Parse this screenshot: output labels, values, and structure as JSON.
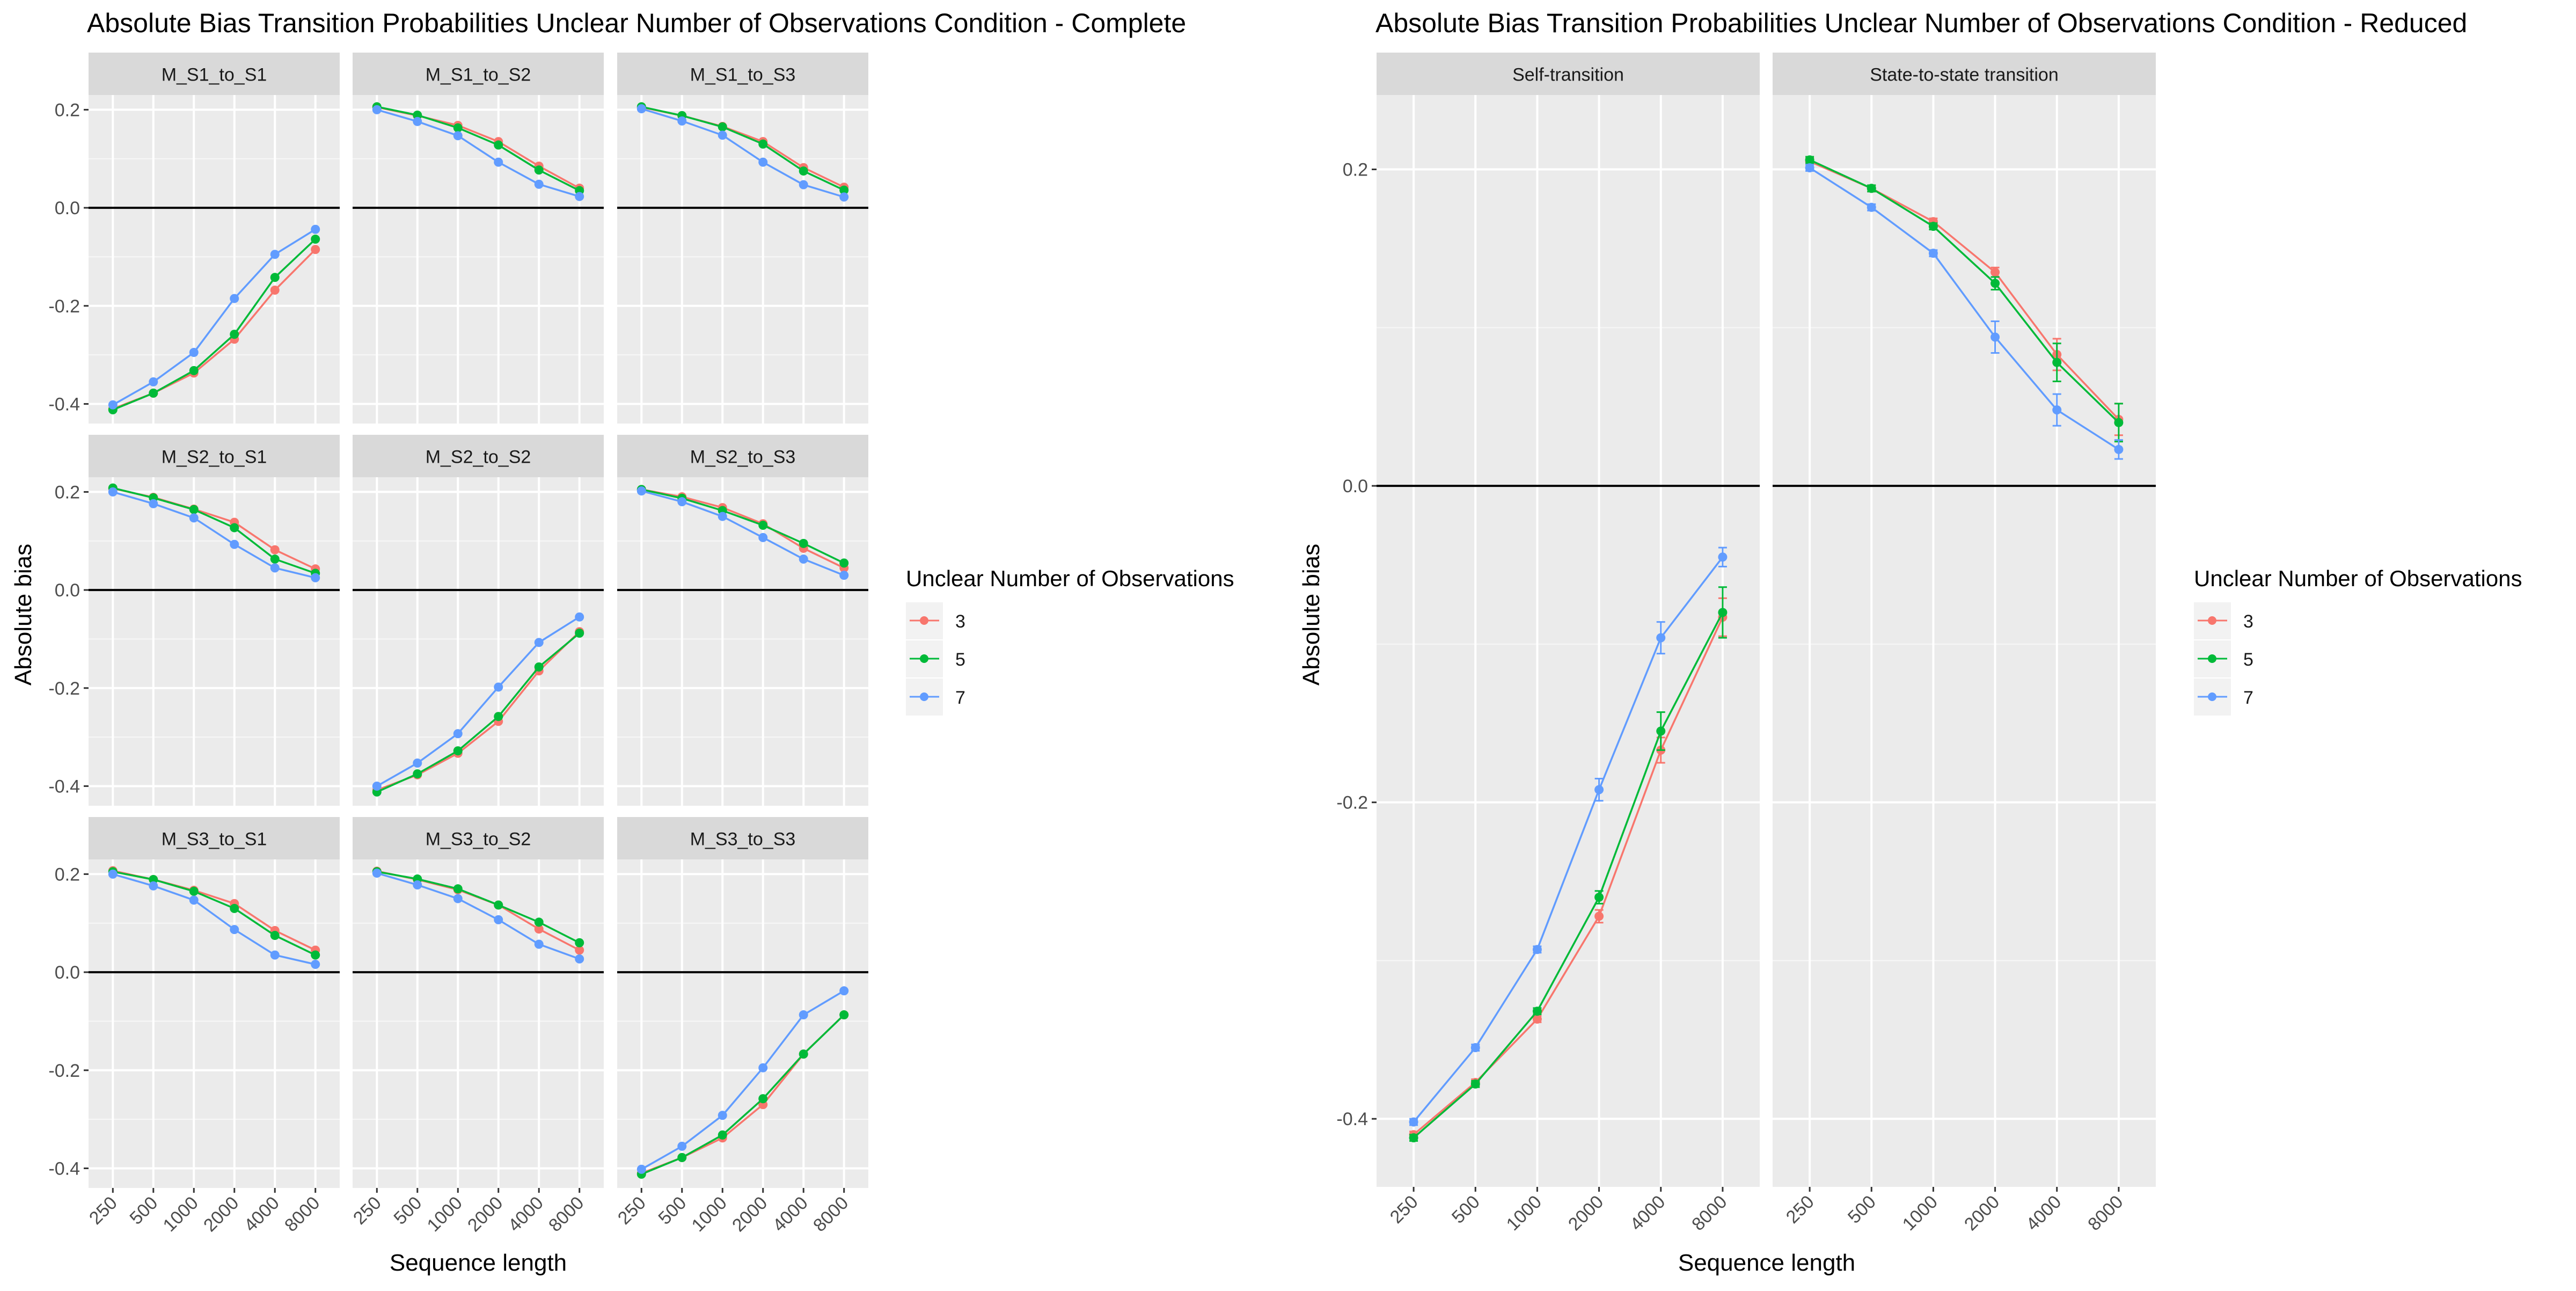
{
  "x_categories": [
    "250",
    "500",
    "1000",
    "2000",
    "4000",
    "8000"
  ],
  "colors": {
    "3": "#F8766D",
    "5": "#00BA38",
    "7": "#619CFF"
  },
  "chart_data": [
    {
      "type": "line",
      "title": "Absolute Bias Transition Probabilities Unclear Number of Observations Condition - Complete",
      "xlabel": "Sequence length",
      "ylabel": "Absolute bias",
      "ylim": [
        -0.44,
        0.23
      ],
      "yticks": [
        -0.4,
        -0.2,
        0.0,
        0.2
      ],
      "ytick_labels": [
        "-0.4",
        "-0.2",
        "0.0",
        "0.2"
      ],
      "grid": true,
      "legend": {
        "title": "Unclear Number of Observations",
        "entries": [
          "3",
          "5",
          "7"
        ],
        "placement": "right"
      },
      "panels": [
        {
          "label": "M_S1_to_S1",
          "series": [
            {
              "name": "3",
              "values": [
                -0.41,
                -0.378,
                -0.337,
                -0.268,
                -0.168,
                -0.085
              ]
            },
            {
              "name": "5",
              "values": [
                -0.412,
                -0.378,
                -0.332,
                -0.258,
                -0.142,
                -0.064
              ]
            },
            {
              "name": "7",
              "values": [
                -0.402,
                -0.355,
                -0.295,
                -0.185,
                -0.095,
                -0.044
              ]
            }
          ]
        },
        {
          "label": "M_S1_to_S2",
          "series": [
            {
              "name": "3",
              "values": [
                0.205,
                0.188,
                0.168,
                0.135,
                0.085,
                0.04
              ]
            },
            {
              "name": "5",
              "values": [
                0.206,
                0.189,
                0.163,
                0.128,
                0.077,
                0.035
              ]
            },
            {
              "name": "7",
              "values": [
                0.2,
                0.176,
                0.147,
                0.093,
                0.048,
                0.023
              ]
            }
          ]
        },
        {
          "label": "M_S1_to_S3",
          "series": [
            {
              "name": "3",
              "values": [
                0.205,
                0.188,
                0.166,
                0.135,
                0.082,
                0.042
              ]
            },
            {
              "name": "5",
              "values": [
                0.206,
                0.188,
                0.165,
                0.13,
                0.075,
                0.036
              ]
            },
            {
              "name": "7",
              "values": [
                0.202,
                0.177,
                0.148,
                0.093,
                0.047,
                0.022
              ]
            }
          ]
        },
        {
          "label": "M_S2_to_S1",
          "series": [
            {
              "name": "3",
              "values": [
                0.207,
                0.189,
                0.165,
                0.138,
                0.082,
                0.043
              ]
            },
            {
              "name": "5",
              "values": [
                0.208,
                0.188,
                0.164,
                0.127,
                0.063,
                0.034
              ]
            },
            {
              "name": "7",
              "values": [
                0.2,
                0.176,
                0.147,
                0.093,
                0.045,
                0.025
              ]
            }
          ]
        },
        {
          "label": "M_S2_to_S2",
          "series": [
            {
              "name": "3",
              "values": [
                -0.408,
                -0.377,
                -0.333,
                -0.268,
                -0.165,
                -0.085
              ]
            },
            {
              "name": "5",
              "values": [
                -0.412,
                -0.375,
                -0.328,
                -0.258,
                -0.157,
                -0.088
              ]
            },
            {
              "name": "7",
              "values": [
                -0.4,
                -0.353,
                -0.293,
                -0.198,
                -0.107,
                -0.055
              ]
            }
          ]
        },
        {
          "label": "M_S2_to_S3",
          "series": [
            {
              "name": "3",
              "values": [
                0.205,
                0.19,
                0.168,
                0.135,
                0.085,
                0.045
              ]
            },
            {
              "name": "5",
              "values": [
                0.205,
                0.187,
                0.162,
                0.132,
                0.095,
                0.055
              ]
            },
            {
              "name": "7",
              "values": [
                0.202,
                0.18,
                0.15,
                0.107,
                0.063,
                0.03
              ]
            }
          ]
        },
        {
          "label": "M_S3_to_S1",
          "series": [
            {
              "name": "3",
              "values": [
                0.207,
                0.189,
                0.167,
                0.14,
                0.085,
                0.045
              ]
            },
            {
              "name": "5",
              "values": [
                0.205,
                0.189,
                0.165,
                0.13,
                0.075,
                0.035
              ]
            },
            {
              "name": "7",
              "values": [
                0.2,
                0.176,
                0.147,
                0.087,
                0.035,
                0.016
              ]
            }
          ]
        },
        {
          "label": "M_S3_to_S2",
          "series": [
            {
              "name": "3",
              "values": [
                0.206,
                0.189,
                0.168,
                0.137,
                0.088,
                0.045
              ]
            },
            {
              "name": "5",
              "values": [
                0.205,
                0.19,
                0.17,
                0.137,
                0.102,
                0.06
              ]
            },
            {
              "name": "7",
              "values": [
                0.202,
                0.178,
                0.15,
                0.107,
                0.057,
                0.027
              ]
            }
          ]
        },
        {
          "label": "M_S3_to_S3",
          "series": [
            {
              "name": "3",
              "values": [
                -0.41,
                -0.378,
                -0.338,
                -0.27,
                -0.167,
                -0.087
              ]
            },
            {
              "name": "5",
              "values": [
                -0.412,
                -0.378,
                -0.332,
                -0.258,
                -0.167,
                -0.087
              ]
            },
            {
              "name": "7",
              "values": [
                -0.402,
                -0.355,
                -0.292,
                -0.195,
                -0.087,
                -0.038
              ]
            }
          ]
        }
      ]
    },
    {
      "type": "line",
      "title": "Absolute Bias Transition Probabilities Unclear Number of Observations Condition - Reduced",
      "xlabel": "Sequence length",
      "ylabel": "Absolute bias",
      "ylim": [
        -0.443,
        0.247
      ],
      "yticks": [
        -0.4,
        -0.2,
        0.0,
        0.2
      ],
      "ytick_labels": [
        "-0.4",
        "-0.2",
        "0.0",
        "0.2"
      ],
      "grid": true,
      "error_bars": true,
      "legend": {
        "title": "Unclear Number of Observations",
        "entries": [
          "3",
          "5",
          "7"
        ],
        "placement": "right"
      },
      "panels": [
        {
          "label": "Self-transition",
          "series": [
            {
              "name": "3",
              "values": [
                -0.41,
                -0.377,
                -0.337,
                -0.272,
                -0.167,
                -0.083
              ],
              "errors": [
                0.002,
                0.002,
                0.002,
                0.004,
                0.008,
                0.012
              ]
            },
            {
              "name": "5",
              "values": [
                -0.412,
                -0.378,
                -0.332,
                -0.26,
                -0.155,
                -0.08
              ],
              "errors": [
                0.002,
                0.002,
                0.002,
                0.004,
                0.012,
                0.016
              ]
            },
            {
              "name": "7",
              "values": [
                -0.402,
                -0.355,
                -0.293,
                -0.192,
                -0.096,
                -0.045
              ],
              "errors": [
                0.002,
                0.002,
                0.002,
                0.007,
                0.01,
                0.006
              ]
            }
          ]
        },
        {
          "label": "State-to-state transition",
          "series": [
            {
              "name": "3",
              "values": [
                0.205,
                0.188,
                0.167,
                0.135,
                0.083,
                0.042
              ],
              "errors": [
                0.002,
                0.002,
                0.002,
                0.003,
                0.01,
                0.01
              ]
            },
            {
              "name": "5",
              "values": [
                0.206,
                0.188,
                0.164,
                0.128,
                0.078,
                0.04
              ],
              "errors": [
                0.002,
                0.002,
                0.002,
                0.004,
                0.012,
                0.012
              ]
            },
            {
              "name": "7",
              "values": [
                0.201,
                0.176,
                0.147,
                0.094,
                0.048,
                0.023
              ],
              "errors": [
                0.002,
                0.002,
                0.002,
                0.01,
                0.01,
                0.006
              ]
            }
          ]
        }
      ]
    }
  ]
}
